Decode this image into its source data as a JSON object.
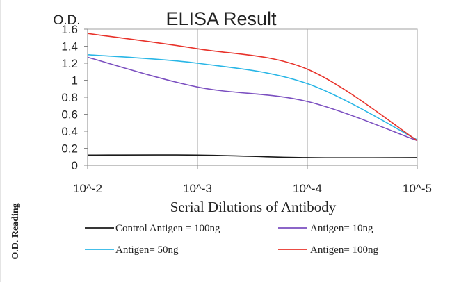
{
  "chart_data": {
    "type": "line",
    "title": "ELISA Result",
    "y_unit_label": "O.D.",
    "xlabel": "Serial Dilutions of Antibody",
    "ylabel": "O.D. Reading",
    "x": [
      "10^-2",
      "10^-3",
      "10^-4",
      "10^-5"
    ],
    "x_scale": "log",
    "ylim": [
      0,
      1.6
    ],
    "yticks": [
      "0",
      "0.2",
      "0.4",
      "0.6",
      "0.8",
      "1",
      "1.2",
      "1.4",
      "1.6"
    ],
    "grid": "vertical",
    "legend_position": "bottom",
    "series": [
      {
        "name": "Control Antigen = 100ng",
        "color": "#1a1a1a",
        "values": [
          0.12,
          0.12,
          0.09,
          0.09
        ]
      },
      {
        "name": "Antigen= 10ng",
        "color": "#7b4fc0",
        "values": [
          1.27,
          0.92,
          0.75,
          0.29
        ]
      },
      {
        "name": "Antigen= 50ng",
        "color": "#29b6e6",
        "values": [
          1.3,
          1.2,
          0.96,
          0.3
        ]
      },
      {
        "name": "Antigen= 100ng",
        "color": "#e8322a",
        "values": [
          1.55,
          1.37,
          1.13,
          0.29
        ]
      }
    ]
  }
}
